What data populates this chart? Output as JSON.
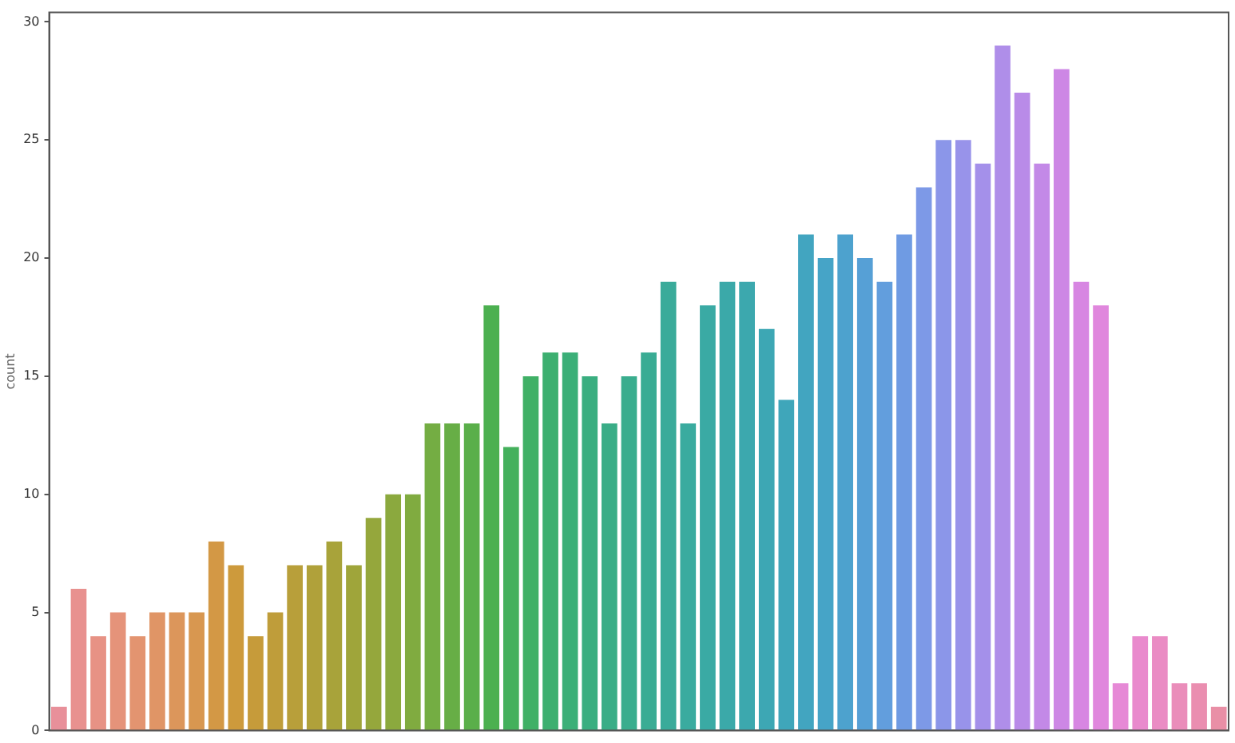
{
  "chart_data": {
    "type": "bar",
    "ylabel": "count",
    "categories": [
      null,
      null,
      null,
      null,
      null,
      null,
      null,
      null,
      null,
      null,
      null,
      null,
      null,
      null,
      null,
      null,
      null,
      null,
      null,
      null,
      null,
      null,
      null,
      null,
      null,
      null,
      null,
      null,
      null,
      null,
      null,
      null,
      null,
      null,
      null,
      null,
      null,
      null,
      null,
      null,
      null,
      null,
      null,
      null,
      null,
      null,
      null,
      null,
      null,
      null,
      null,
      null,
      null,
      null,
      null,
      null,
      null,
      null,
      null,
      null
    ],
    "values": [
      1,
      6,
      4,
      5,
      4,
      5,
      5,
      5,
      8,
      7,
      4,
      5,
      7,
      7,
      8,
      7,
      9,
      10,
      10,
      13,
      13,
      13,
      18,
      12,
      15,
      16,
      16,
      15,
      13,
      15,
      16,
      19,
      13,
      18,
      19,
      19,
      17,
      14,
      21,
      20,
      21,
      20,
      19,
      21,
      23,
      25,
      25,
      24,
      29,
      27,
      24,
      28,
      19,
      18,
      2,
      4,
      4,
      2,
      2,
      1
    ],
    "colors": [
      "#e8909a",
      "#e8918f",
      "#e79285",
      "#e5937a",
      "#e39470",
      "#e09566",
      "#dc965b",
      "#d89750",
      "#d39845",
      "#cd9a3c",
      "#c69b3a",
      "#bf9d3a",
      "#b89f3a",
      "#b0a13a",
      "#a8a33a",
      "#9fa53a",
      "#95a73c",
      "#8ba93e",
      "#80ab40",
      "#74ad43",
      "#67ae46",
      "#5aaf4a",
      "#4cb050",
      "#44b05c",
      "#40b066",
      "#3daf70",
      "#3baf78",
      "#3aae80",
      "#3aad87",
      "#3aad8e",
      "#3aac94",
      "#3aab9a",
      "#3aab9f",
      "#3aaaa4",
      "#3ba9a9",
      "#3ca8ae",
      "#3da7b4",
      "#3fa6ba",
      "#42a5c0",
      "#46a4c7",
      "#4da2ce",
      "#56a0d6",
      "#629edd",
      "#6f9be3",
      "#7d99e7",
      "#8b96e9",
      "#9893ea",
      "#a490ea",
      "#af8ee9",
      "#b98be8",
      "#c389e7",
      "#cd87e5",
      "#d786e2",
      "#e087dd",
      "#e689d6",
      "#e98acd",
      "#ea8cc4",
      "#ea8dba",
      "#ea8eb0",
      "#e98fa6"
    ],
    "ylim": [
      0,
      30.4
    ],
    "yticks": [
      0,
      5,
      10,
      15,
      20,
      25,
      30
    ],
    "grid": false,
    "legend": false,
    "tick_labels": "y"
  }
}
